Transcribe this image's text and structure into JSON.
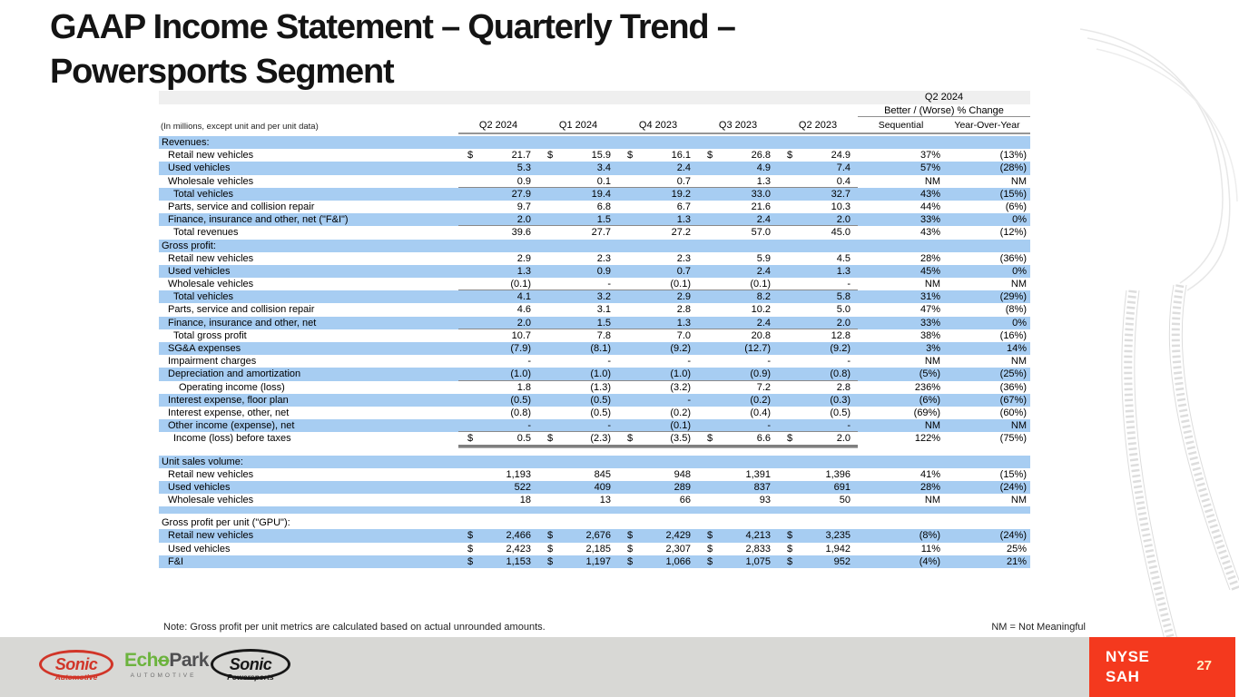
{
  "slide": {
    "title_line1": "GAAP Income Statement – Quarterly Trend –",
    "title_line2": "Powersports Segment",
    "note": "Note: Gross profit per unit metrics are calculated based on actual unrounded amounts.",
    "nm_legend": "NM = Not Meaningful",
    "page_number": "27",
    "ticker_line1": "NYSE",
    "ticker_line2": "SAH"
  },
  "colors": {
    "row_blue": "#a7cdf2",
    "footer_gray": "#d8d8d5",
    "ticker_red": "#f4391e",
    "underline_gray": "#8a8a8a"
  },
  "logos": {
    "sonic_automotive": {
      "name": "Sonic",
      "sub": "Automotive"
    },
    "echopark": {
      "text1": "Ech",
      "text_o": "o",
      "text2": "Park",
      "sub": "AUTOMOTIVE"
    },
    "sonic_powersports": {
      "name": "Sonic",
      "sub": "Powersports"
    }
  },
  "table": {
    "units_note": "(In millions, except unit and per unit data)",
    "change_header_line1": "Q2 2024",
    "change_header_line2": "Better / (Worse) % Change",
    "columns": [
      "Q2 2024",
      "Q1 2024",
      "Q4 2023",
      "Q3 2023",
      "Q2 2023"
    ],
    "change_columns": [
      "Sequential",
      "Year-Over-Year"
    ],
    "rows": [
      {
        "type": "section",
        "shade": "blue",
        "label": "Revenues:"
      },
      {
        "type": "data",
        "shade": "white",
        "indent": 1,
        "label": "Retail new vehicles",
        "dollar": true,
        "values": [
          "21.7",
          "15.9",
          "16.1",
          "26.8",
          "24.9"
        ],
        "seq": "37%",
        "yoy": "(13%)"
      },
      {
        "type": "data",
        "shade": "blue",
        "indent": 1,
        "label": "Used vehicles",
        "values": [
          "5.3",
          "3.4",
          "2.4",
          "4.9",
          "7.4"
        ],
        "seq": "57%",
        "yoy": "(28%)"
      },
      {
        "type": "data",
        "shade": "white",
        "indent": 1,
        "label": "Wholesale vehicles",
        "values": [
          "0.9",
          "0.1",
          "0.7",
          "1.3",
          "0.4"
        ],
        "seq": "NM",
        "yoy": "NM",
        "underline": true
      },
      {
        "type": "data",
        "shade": "blue",
        "indent": 2,
        "label": "Total vehicles",
        "values": [
          "27.9",
          "19.4",
          "19.2",
          "33.0",
          "32.7"
        ],
        "seq": "43%",
        "yoy": "(15%)"
      },
      {
        "type": "data",
        "shade": "white",
        "indent": 1,
        "label": "Parts, service and collision repair",
        "values": [
          "9.7",
          "6.8",
          "6.7",
          "21.6",
          "10.3"
        ],
        "seq": "44%",
        "yoy": "(6%)"
      },
      {
        "type": "data",
        "shade": "blue",
        "indent": 1,
        "label": "Finance, insurance and other, net (\"F&I\")",
        "values": [
          "2.0",
          "1.5",
          "1.3",
          "2.4",
          "2.0"
        ],
        "seq": "33%",
        "yoy": "0%",
        "underline": true
      },
      {
        "type": "data",
        "shade": "white",
        "indent": 2,
        "label": "Total revenues",
        "values": [
          "39.6",
          "27.7",
          "27.2",
          "57.0",
          "45.0"
        ],
        "seq": "43%",
        "yoy": "(12%)"
      },
      {
        "type": "section",
        "shade": "blue",
        "label": "Gross profit:"
      },
      {
        "type": "data",
        "shade": "white",
        "indent": 1,
        "label": "Retail new vehicles",
        "values": [
          "2.9",
          "2.3",
          "2.3",
          "5.9",
          "4.5"
        ],
        "seq": "28%",
        "yoy": "(36%)"
      },
      {
        "type": "data",
        "shade": "blue",
        "indent": 1,
        "label": "Used vehicles",
        "values": [
          "1.3",
          "0.9",
          "0.7",
          "2.4",
          "1.3"
        ],
        "seq": "45%",
        "yoy": "0%"
      },
      {
        "type": "data",
        "shade": "white",
        "indent": 1,
        "label": "Wholesale vehicles",
        "values": [
          "(0.1)",
          "-",
          "(0.1)",
          "(0.1)",
          "-"
        ],
        "seq": "NM",
        "yoy": "NM",
        "underline": true
      },
      {
        "type": "data",
        "shade": "blue",
        "indent": 2,
        "label": "Total vehicles",
        "values": [
          "4.1",
          "3.2",
          "2.9",
          "8.2",
          "5.8"
        ],
        "seq": "31%",
        "yoy": "(29%)"
      },
      {
        "type": "data",
        "shade": "white",
        "indent": 1,
        "label": "Parts, service and collision repair",
        "values": [
          "4.6",
          "3.1",
          "2.8",
          "10.2",
          "5.0"
        ],
        "seq": "47%",
        "yoy": "(8%)"
      },
      {
        "type": "data",
        "shade": "blue",
        "indent": 1,
        "label": "Finance, insurance and other, net",
        "values": [
          "2.0",
          "1.5",
          "1.3",
          "2.4",
          "2.0"
        ],
        "seq": "33%",
        "yoy": "0%",
        "underline": true
      },
      {
        "type": "data",
        "shade": "white",
        "indent": 2,
        "label": "Total gross profit",
        "values": [
          "10.7",
          "7.8",
          "7.0",
          "20.8",
          "12.8"
        ],
        "seq": "38%",
        "yoy": "(16%)"
      },
      {
        "type": "data",
        "shade": "blue",
        "indent": 1,
        "label": "SG&A expenses",
        "values": [
          "(7.9)",
          "(8.1)",
          "(9.2)",
          "(12.7)",
          "(9.2)"
        ],
        "seq": "3%",
        "yoy": "14%"
      },
      {
        "type": "data",
        "shade": "white",
        "indent": 1,
        "label": "Impairment charges",
        "values": [
          "-",
          "-",
          "-",
          "-",
          "-"
        ],
        "seq": "NM",
        "yoy": "NM"
      },
      {
        "type": "data",
        "shade": "blue",
        "indent": 1,
        "label": "Depreciation and amortization",
        "values": [
          "(1.0)",
          "(1.0)",
          "(1.0)",
          "(0.9)",
          "(0.8)"
        ],
        "seq": "(5%)",
        "yoy": "(25%)",
        "underline": true
      },
      {
        "type": "data",
        "shade": "white",
        "indent": 3,
        "label": "Operating income (loss)",
        "values": [
          "1.8",
          "(1.3)",
          "(3.2)",
          "7.2",
          "2.8"
        ],
        "seq": "236%",
        "yoy": "(36%)"
      },
      {
        "type": "data",
        "shade": "blue",
        "indent": 1,
        "label": "Interest expense, floor plan",
        "values": [
          "(0.5)",
          "(0.5)",
          "-",
          "(0.2)",
          "(0.3)"
        ],
        "seq": "(6%)",
        "yoy": "(67%)"
      },
      {
        "type": "data",
        "shade": "white",
        "indent": 1,
        "label": "Interest expense, other, net",
        "values": [
          "(0.8)",
          "(0.5)",
          "(0.2)",
          "(0.4)",
          "(0.5)"
        ],
        "seq": "(69%)",
        "yoy": "(60%)"
      },
      {
        "type": "data",
        "shade": "blue",
        "indent": 1,
        "label": "Other income (expense), net",
        "values": [
          "-",
          "-",
          "(0.1)",
          "-",
          "-"
        ],
        "seq": "NM",
        "yoy": "NM",
        "underline": true
      },
      {
        "type": "data",
        "shade": "white",
        "indent": 2,
        "label": "Income (loss) before taxes",
        "dollar": true,
        "values": [
          "0.5",
          "(2.3)",
          "(3.5)",
          "6.6",
          "2.0"
        ],
        "seq": "122%",
        "yoy": "(75%)",
        "double_underline": true
      },
      {
        "type": "spacer",
        "shade": "white",
        "height": 11
      },
      {
        "type": "section",
        "shade": "blue",
        "label": "Unit sales volume:"
      },
      {
        "type": "data",
        "shade": "white",
        "indent": 1,
        "label": "Retail new vehicles",
        "values": [
          "1,193",
          "845",
          "948",
          "1,391",
          "1,396"
        ],
        "seq": "41%",
        "yoy": "(15%)"
      },
      {
        "type": "data",
        "shade": "blue",
        "indent": 1,
        "label": "Used vehicles",
        "values": [
          "522",
          "409",
          "289",
          "837",
          "691"
        ],
        "seq": "28%",
        "yoy": "(24%)"
      },
      {
        "type": "data",
        "shade": "white",
        "indent": 1,
        "label": "Wholesale vehicles",
        "values": [
          "18",
          "13",
          "66",
          "93",
          "50"
        ],
        "seq": "NM",
        "yoy": "NM"
      },
      {
        "type": "spacer",
        "shade": "blue",
        "height": 8
      },
      {
        "type": "spacer",
        "shade": "white",
        "height": 3
      },
      {
        "type": "section",
        "shade": "white",
        "label": "Gross profit per unit (\"GPU\"):"
      },
      {
        "type": "data",
        "shade": "blue",
        "indent": 1,
        "label": "Retail new vehicles",
        "dollar": true,
        "values": [
          "2,466",
          "2,676",
          "2,429",
          "4,213",
          "3,235"
        ],
        "seq": "(8%)",
        "yoy": "(24%)"
      },
      {
        "type": "data",
        "shade": "white",
        "indent": 1,
        "label": "Used vehicles",
        "dollar": true,
        "values": [
          "2,423",
          "2,185",
          "2,307",
          "2,833",
          "1,942"
        ],
        "seq": "11%",
        "yoy": "25%"
      },
      {
        "type": "data",
        "shade": "blue",
        "indent": 1,
        "label": "F&I",
        "dollar": true,
        "values": [
          "1,153",
          "1,197",
          "1,066",
          "1,075",
          "952"
        ],
        "seq": "(4%)",
        "yoy": "21%"
      }
    ]
  }
}
